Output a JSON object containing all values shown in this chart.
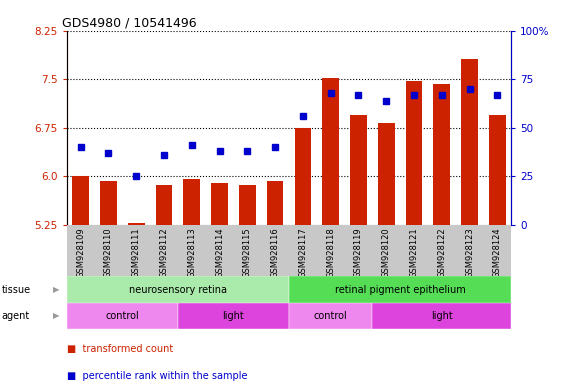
{
  "title": "GDS4980 / 10541496",
  "samples": [
    "GSM928109",
    "GSM928110",
    "GSM928111",
    "GSM928112",
    "GSM928113",
    "GSM928114",
    "GSM928115",
    "GSM928116",
    "GSM928117",
    "GSM928118",
    "GSM928119",
    "GSM928120",
    "GSM928121",
    "GSM928122",
    "GSM928123",
    "GSM928124"
  ],
  "transformed_count": [
    6.0,
    5.92,
    5.27,
    5.87,
    5.95,
    5.9,
    5.87,
    5.93,
    6.75,
    7.52,
    6.95,
    6.82,
    7.47,
    7.42,
    7.82,
    6.95
  ],
  "percentile_rank": [
    40,
    37,
    25,
    36,
    41,
    38,
    38,
    40,
    56,
    68,
    67,
    64,
    67,
    67,
    70,
    67
  ],
  "y_min": 5.25,
  "y_max": 8.25,
  "y_ticks_left": [
    5.25,
    6.0,
    6.75,
    7.5,
    8.25
  ],
  "y_ticks_right": [
    0,
    25,
    50,
    75,
    100
  ],
  "bar_color": "#cc2200",
  "dot_color": "#0000cc",
  "tissue_groups": [
    {
      "label": "neurosensory retina",
      "start": 0,
      "end": 8,
      "color": "#aaeaaa"
    },
    {
      "label": "retinal pigment epithelium",
      "start": 8,
      "end": 16,
      "color": "#55dd55"
    }
  ],
  "agent_groups": [
    {
      "label": "control",
      "start": 0,
      "end": 4,
      "color": "#ee88ee"
    },
    {
      "label": "light",
      "start": 4,
      "end": 8,
      "color": "#dd44dd"
    },
    {
      "label": "control",
      "start": 8,
      "end": 11,
      "color": "#ee88ee"
    },
    {
      "label": "light",
      "start": 11,
      "end": 16,
      "color": "#dd44dd"
    }
  ],
  "grid_linestyle": "dotted",
  "background_color": "#ffffff"
}
